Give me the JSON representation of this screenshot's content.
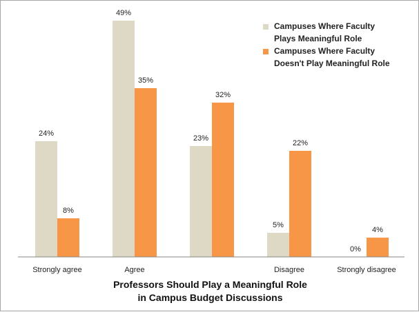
{
  "chart_data": {
    "type": "bar",
    "title": "",
    "xlabel": "Professors Should Play a Meaningful Role in Campus Budget Discussions",
    "xlabel_lines": [
      "Professors Should Play a Meaningful Role",
      "in Campus Budget Discussions"
    ],
    "ylabel": "",
    "categories": [
      "Strongly agree",
      "Agree",
      "",
      "Disagree",
      "Strongly disagree"
    ],
    "series": [
      {
        "name": "Campuses Where Faculty Plays Meaningful Role",
        "name_lines": [
          "Campuses Where Faculty",
          "Plays Meaningful Role"
        ],
        "color": "#ddd9c4",
        "values": [
          24,
          49,
          23,
          5,
          0
        ],
        "labels": [
          "24%",
          "49%",
          "23%",
          "5%",
          "0%"
        ]
      },
      {
        "name": "Campuses Where Faculty Doesn't Play Meaningful Role",
        "name_lines": [
          "Campuses Where Faculty",
          "Doesn't Play Meaningful Role"
        ],
        "color": "#f79646",
        "values": [
          8,
          35,
          32,
          22,
          4
        ],
        "labels": [
          "8%",
          "35%",
          "32%",
          "22%",
          "4%"
        ]
      }
    ],
    "ylim": [
      0,
      50
    ],
    "grid": false,
    "legend_position": "top-right",
    "axis_color": "#868686"
  }
}
